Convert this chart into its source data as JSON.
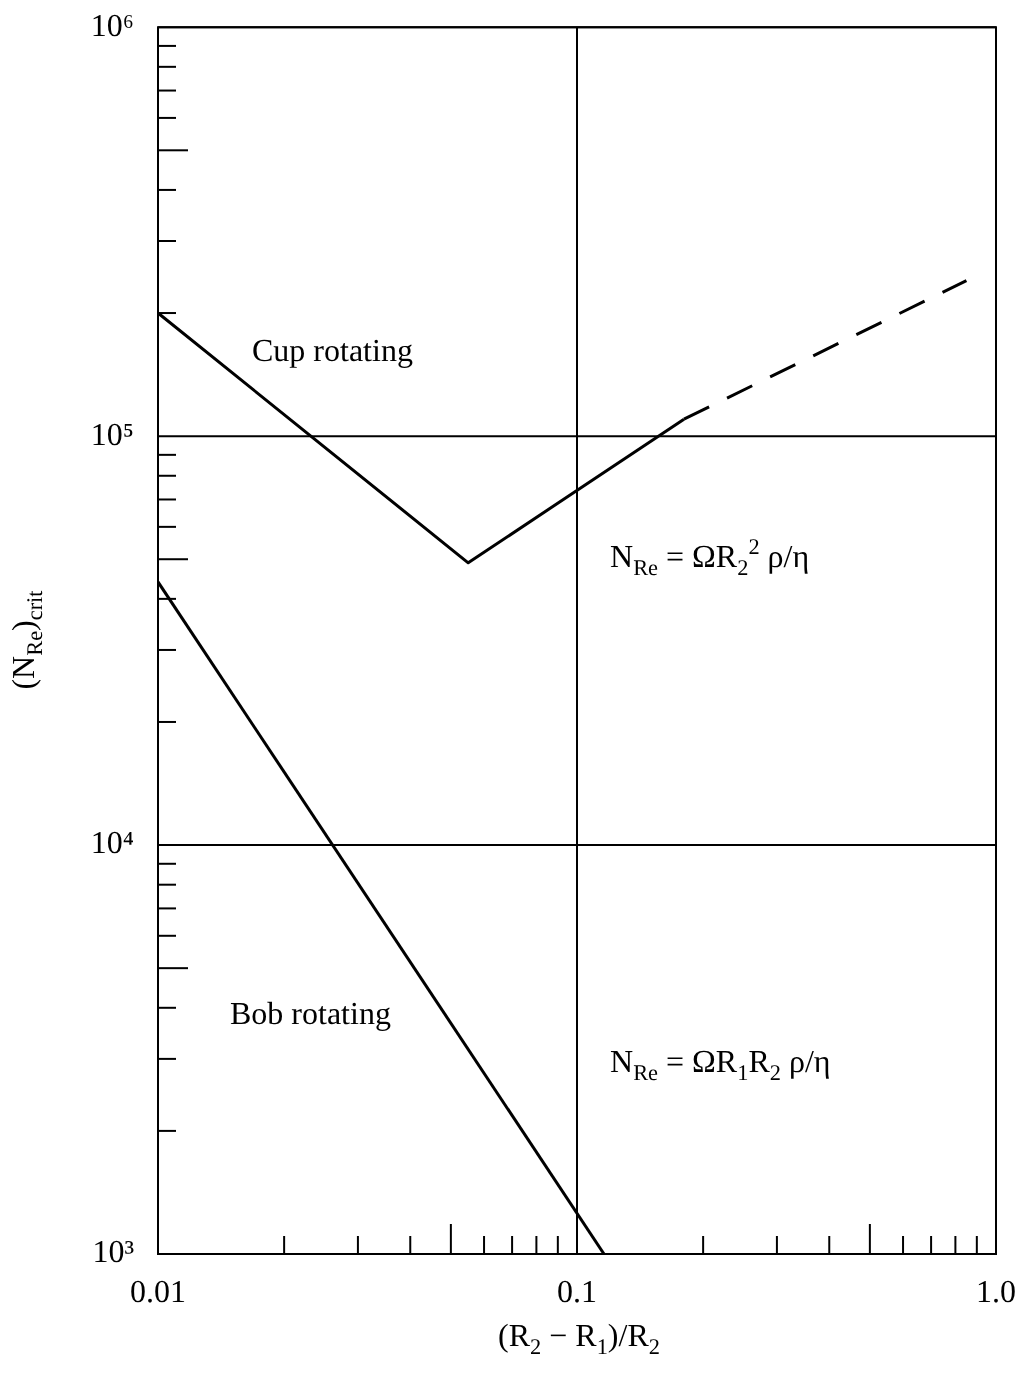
{
  "chart_data": {
    "type": "line",
    "xlabel": "(R$_{2}$ − R$_{1}$)/R$_{2}$",
    "ylabel": "(N$_{Re}$)$_{crit}$",
    "log": "xy",
    "grid": true,
    "legend": false,
    "marker": "none",
    "xlim": [
      0.01,
      1.0
    ],
    "ylim": [
      1000,
      1000000
    ],
    "xticks": [
      0.01,
      {
        "value": 0.02,
        "label": null
      },
      {
        "value": 0.03,
        "label": null
      },
      {
        "value": 0.04,
        "label": null
      },
      {
        "value": 0.05,
        "label": null
      },
      {
        "value": 0.06,
        "label": null
      },
      {
        "value": 0.07,
        "label": null
      },
      {
        "value": 0.08,
        "label": null
      },
      {
        "value": 0.09,
        "label": null
      },
      0.1,
      {
        "value": 0.2,
        "label": null
      },
      {
        "value": 0.3,
        "label": null
      },
      {
        "value": 0.4,
        "label": null
      },
      {
        "value": 0.5,
        "label": null
      },
      {
        "value": 0.6,
        "label": null
      },
      {
        "value": 0.7,
        "label": null
      },
      {
        "value": 0.8,
        "label": null
      },
      {
        "value": 0.9,
        "label": null
      },
      {
        "value": 1.0,
        "label": "1.0"
      }
    ],
    "yticks": [
      {
        "value": 1000,
        "label": "10³"
      },
      {
        "value": 2000,
        "label": null
      },
      {
        "value": 3000,
        "label": null
      },
      {
        "value": 4000,
        "label": null
      },
      {
        "value": 5000,
        "label": null
      },
      {
        "value": 6000,
        "label": null
      },
      {
        "value": 7000,
        "label": null
      },
      {
        "value": 8000,
        "label": null
      },
      {
        "value": 9000,
        "label": null
      },
      {
        "value": 10000,
        "label": "10⁴"
      },
      {
        "value": 20000,
        "label": null
      },
      {
        "value": 30000,
        "label": null
      },
      {
        "value": 40000,
        "label": null
      },
      {
        "value": 50000,
        "label": null
      },
      {
        "value": 60000,
        "label": null
      },
      {
        "value": 70000,
        "label": null
      },
      {
        "value": 80000,
        "label": null
      },
      {
        "value": 90000,
        "label": null
      },
      {
        "value": 100000,
        "label": "10⁵"
      },
      {
        "value": 200000,
        "label": null
      },
      {
        "value": 300000,
        "label": null
      },
      {
        "value": 400000,
        "label": null
      },
      {
        "value": 500000,
        "label": null
      },
      {
        "value": 600000,
        "label": null
      },
      {
        "value": 700000,
        "label": null
      },
      {
        "value": 800000,
        "label": null
      },
      {
        "value": 900000,
        "label": null
      },
      {
        "value": 1000000,
        "label": "10⁶"
      }
    ],
    "series": [
      {
        "name": "Cup rotating",
        "color": "#000000",
        "line_style": "solid",
        "x": [
          0.01,
          0.055,
          0.18
        ],
        "values": [
          200000,
          49000,
          110000
        ]
      },
      {
        "color": "#000000",
        "line_style": "dashed",
        "x": [
          0.18,
          0.85
        ],
        "values": [
          110000,
          240000
        ]
      },
      {
        "name": "Bob rotating",
        "color": "#000000",
        "line_style": "solid",
        "x": [
          0.01,
          0.116
        ],
        "values": [
          44000,
          1000
        ]
      }
    ],
    "annotations": [
      "N$_{Re}$ = ΩR$_{2}$$^{2}$ ρ/η",
      "N$_{Re}$ = ΩR$_{1}$R$_{2}$ ρ/η"
    ]
  }
}
